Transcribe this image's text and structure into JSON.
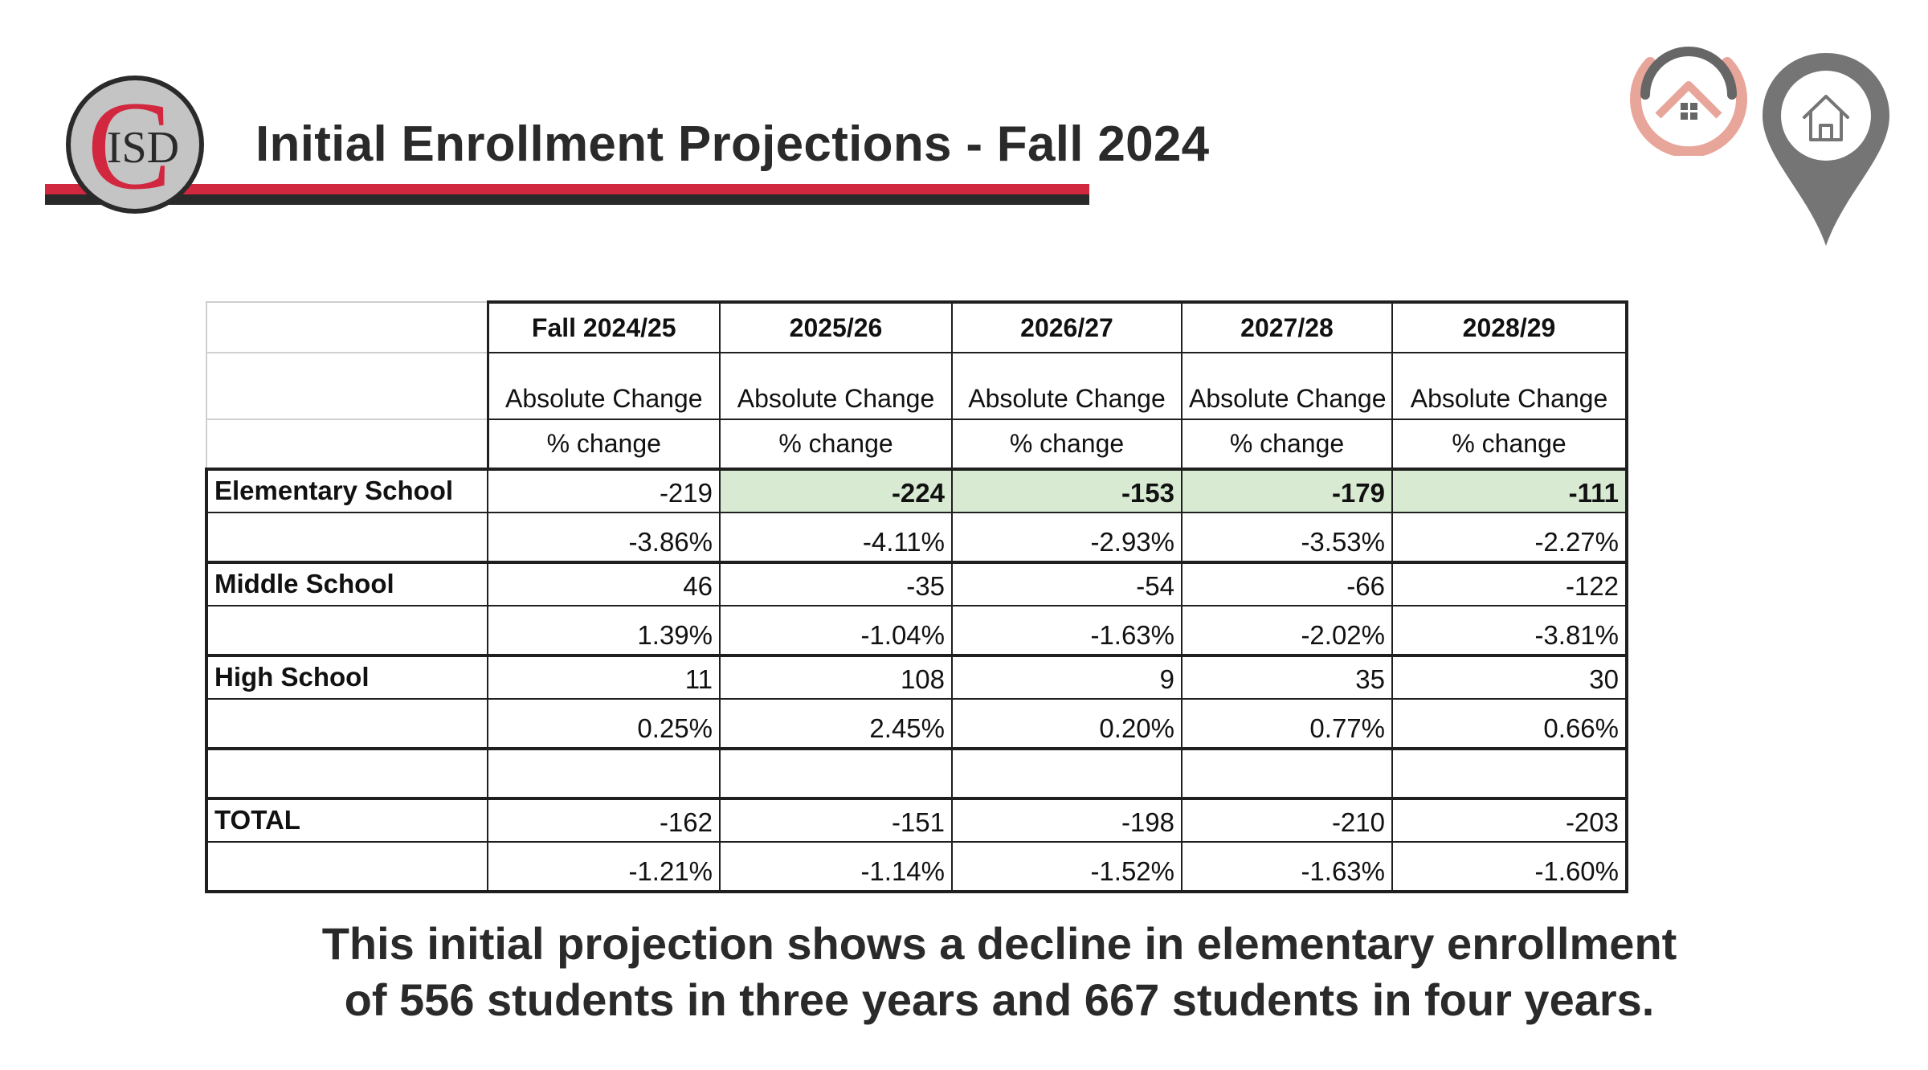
{
  "header": {
    "logo_letter": "C",
    "logo_text": "ISD",
    "title": "Initial Enrollment Projections - Fall 2024"
  },
  "icons": {
    "house_ring": "house-ring-icon",
    "map_pin": "map-pin-home-icon"
  },
  "colors": {
    "brand_red": "#d2283f",
    "brand_dark": "#2a2a2a",
    "highlight_green": "#d9ead3",
    "ring_salmon": "#e8a59a",
    "pin_gray": "#757575"
  },
  "table": {
    "years": [
      "Fall 2024/25",
      "2025/26",
      "2026/27",
      "2027/28",
      "2028/29"
    ],
    "abs_label": "Absolute Change",
    "pct_label": "% change",
    "rows": [
      {
        "label": "Elementary School",
        "abs": [
          "-219",
          "-224",
          "-153",
          "-179",
          "-111"
        ],
        "pct": [
          "-3.86%",
          "-4.11%",
          "-2.93%",
          "-3.53%",
          "-2.27%"
        ],
        "highlight_abs": [
          false,
          true,
          true,
          true,
          true
        ]
      },
      {
        "label": "Middle School",
        "abs": [
          "46",
          "-35",
          "-54",
          "-66",
          "-122"
        ],
        "pct": [
          "1.39%",
          "-1.04%",
          "-1.63%",
          "-2.02%",
          "-3.81%"
        ]
      },
      {
        "label": "High School",
        "abs": [
          "11",
          "108",
          "9",
          "35",
          "30"
        ],
        "pct": [
          "0.25%",
          "2.45%",
          "0.20%",
          "0.77%",
          "0.66%"
        ]
      }
    ],
    "total": {
      "label": "TOTAL",
      "abs": [
        "-162",
        "-151",
        "-198",
        "-210",
        "-203"
      ],
      "pct": [
        "-1.21%",
        "-1.14%",
        "-1.52%",
        "-1.63%",
        "-1.60%"
      ]
    }
  },
  "note": {
    "line1": "This initial projection shows a decline in elementary enrollment",
    "line2": "of 556 students in three years and 667 students in four years."
  }
}
